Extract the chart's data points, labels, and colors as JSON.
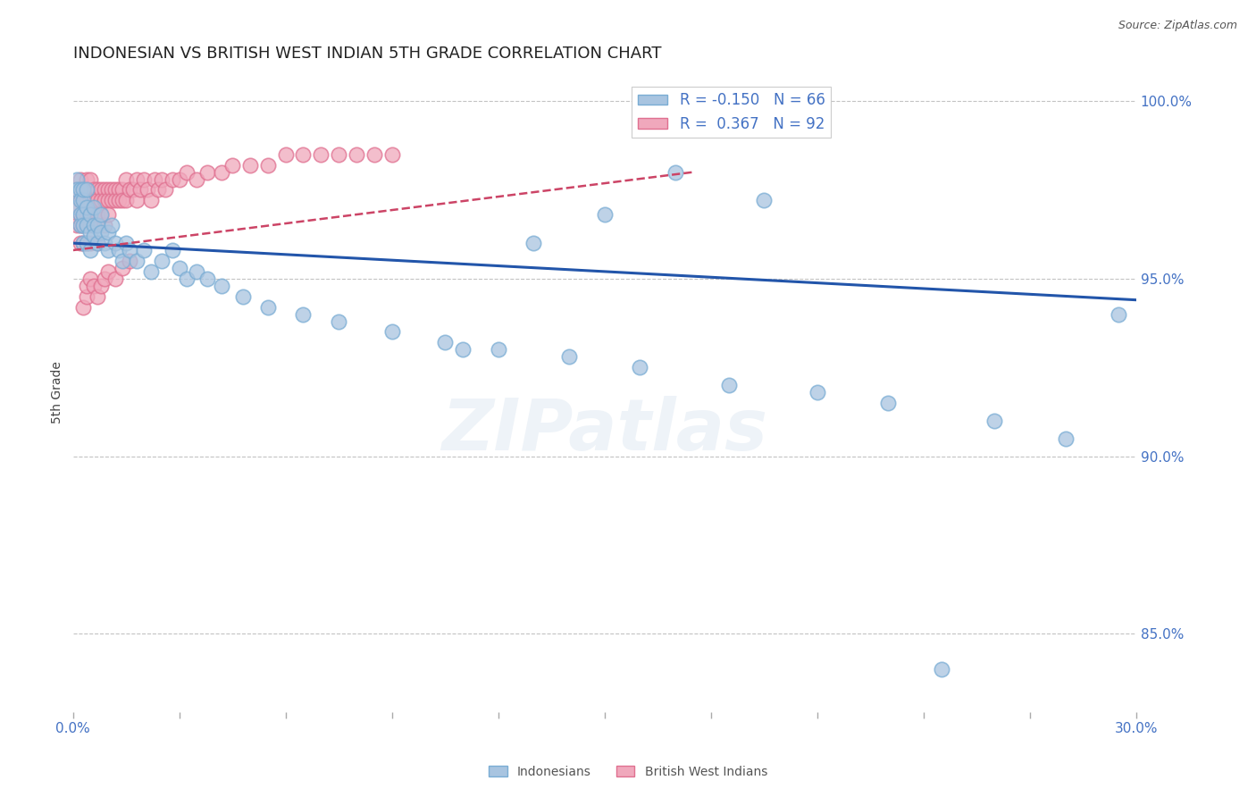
{
  "title": "INDONESIAN VS BRITISH WEST INDIAN 5TH GRADE CORRELATION CHART",
  "source": "Source: ZipAtlas.com",
  "ylabel": "5th Grade",
  "xlim": [
    0.0,
    0.3
  ],
  "ylim": [
    0.828,
    1.008
  ],
  "yticks": [
    0.85,
    0.9,
    0.95,
    1.0
  ],
  "ytick_labels": [
    "85.0%",
    "90.0%",
    "95.0%",
    "100.0%"
  ],
  "xticks": [
    0.0,
    0.03,
    0.06,
    0.09,
    0.12,
    0.15,
    0.18,
    0.21,
    0.24,
    0.27,
    0.3
  ],
  "R_indonesian": -0.15,
  "N_indonesian": 66,
  "R_british": 0.367,
  "N_british": 92,
  "blue_color": "#A8C4E0",
  "blue_edge_color": "#7AADD4",
  "pink_color": "#F0A8BC",
  "pink_edge_color": "#E07090",
  "blue_line_color": "#2255AA",
  "pink_line_color": "#CC4466",
  "watermark": "ZIPatlas",
  "indo_x": [
    0.001,
    0.001,
    0.001,
    0.002,
    0.002,
    0.002,
    0.002,
    0.003,
    0.003,
    0.003,
    0.003,
    0.003,
    0.004,
    0.004,
    0.004,
    0.004,
    0.005,
    0.005,
    0.005,
    0.006,
    0.006,
    0.006,
    0.007,
    0.007,
    0.008,
    0.008,
    0.009,
    0.01,
    0.01,
    0.011,
    0.012,
    0.013,
    0.014,
    0.015,
    0.016,
    0.018,
    0.02,
    0.022,
    0.025,
    0.028,
    0.03,
    0.032,
    0.035,
    0.038,
    0.042,
    0.048,
    0.055,
    0.065,
    0.075,
    0.09,
    0.105,
    0.12,
    0.14,
    0.16,
    0.185,
    0.21,
    0.23,
    0.26,
    0.28,
    0.295,
    0.17,
    0.195,
    0.15,
    0.13,
    0.11,
    0.245
  ],
  "indo_y": [
    0.978,
    0.975,
    0.97,
    0.975,
    0.972,
    0.968,
    0.965,
    0.972,
    0.968,
    0.965,
    0.96,
    0.975,
    0.97,
    0.965,
    0.96,
    0.975,
    0.968,
    0.963,
    0.958,
    0.965,
    0.962,
    0.97,
    0.965,
    0.96,
    0.968,
    0.963,
    0.96,
    0.963,
    0.958,
    0.965,
    0.96,
    0.958,
    0.955,
    0.96,
    0.958,
    0.955,
    0.958,
    0.952,
    0.955,
    0.958,
    0.953,
    0.95,
    0.952,
    0.95,
    0.948,
    0.945,
    0.942,
    0.94,
    0.938,
    0.935,
    0.932,
    0.93,
    0.928,
    0.925,
    0.92,
    0.918,
    0.915,
    0.91,
    0.905,
    0.94,
    0.98,
    0.972,
    0.968,
    0.96,
    0.93,
    0.84
  ],
  "brit_x": [
    0.001,
    0.001,
    0.001,
    0.002,
    0.002,
    0.002,
    0.002,
    0.002,
    0.003,
    0.003,
    0.003,
    0.003,
    0.003,
    0.003,
    0.004,
    0.004,
    0.004,
    0.004,
    0.004,
    0.004,
    0.005,
    0.005,
    0.005,
    0.005,
    0.005,
    0.006,
    0.006,
    0.006,
    0.006,
    0.007,
    0.007,
    0.007,
    0.007,
    0.008,
    0.008,
    0.008,
    0.009,
    0.009,
    0.009,
    0.01,
    0.01,
    0.01,
    0.011,
    0.011,
    0.012,
    0.012,
    0.013,
    0.013,
    0.014,
    0.014,
    0.015,
    0.015,
    0.016,
    0.017,
    0.018,
    0.018,
    0.019,
    0.02,
    0.021,
    0.022,
    0.023,
    0.024,
    0.025,
    0.026,
    0.028,
    0.03,
    0.032,
    0.035,
    0.038,
    0.042,
    0.045,
    0.05,
    0.055,
    0.06,
    0.065,
    0.07,
    0.075,
    0.08,
    0.085,
    0.09,
    0.003,
    0.004,
    0.004,
    0.005,
    0.006,
    0.007,
    0.008,
    0.009,
    0.01,
    0.012,
    0.014,
    0.016
  ],
  "brit_y": [
    0.975,
    0.97,
    0.965,
    0.978,
    0.972,
    0.968,
    0.965,
    0.96,
    0.975,
    0.972,
    0.968,
    0.965,
    0.96,
    0.975,
    0.978,
    0.972,
    0.968,
    0.965,
    0.96,
    0.975,
    0.978,
    0.972,
    0.968,
    0.965,
    0.96,
    0.975,
    0.972,
    0.968,
    0.965,
    0.975,
    0.972,
    0.968,
    0.96,
    0.975,
    0.972,
    0.968,
    0.975,
    0.972,
    0.965,
    0.975,
    0.972,
    0.968,
    0.975,
    0.972,
    0.975,
    0.972,
    0.975,
    0.972,
    0.975,
    0.972,
    0.978,
    0.972,
    0.975,
    0.975,
    0.978,
    0.972,
    0.975,
    0.978,
    0.975,
    0.972,
    0.978,
    0.975,
    0.978,
    0.975,
    0.978,
    0.978,
    0.98,
    0.978,
    0.98,
    0.98,
    0.982,
    0.982,
    0.982,
    0.985,
    0.985,
    0.985,
    0.985,
    0.985,
    0.985,
    0.985,
    0.942,
    0.945,
    0.948,
    0.95,
    0.948,
    0.945,
    0.948,
    0.95,
    0.952,
    0.95,
    0.953,
    0.955
  ]
}
